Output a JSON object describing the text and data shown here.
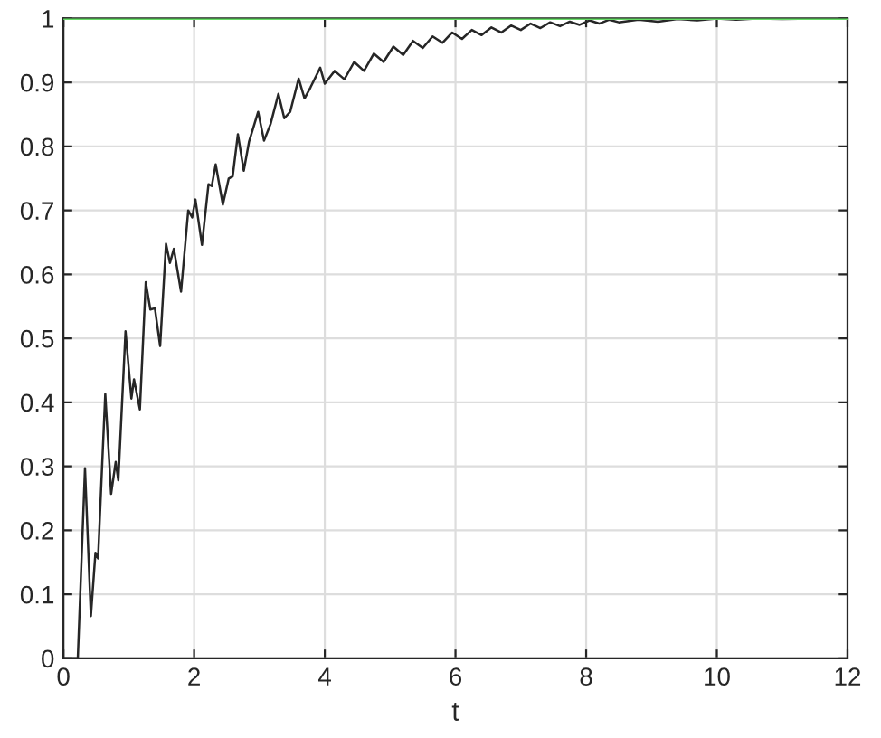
{
  "chart_data": {
    "type": "line",
    "xlabel": "t",
    "xlim": [
      0,
      12
    ],
    "ylim": [
      0,
      1
    ],
    "xticks": [
      0,
      2,
      4,
      6,
      8,
      10,
      12
    ],
    "yticks": [
      0,
      0.1,
      0.2,
      0.3,
      0.4,
      0.5,
      0.6,
      0.7,
      0.8,
      0.9,
      1
    ],
    "grid": true,
    "marker": "none",
    "line_style": "solid",
    "series": [
      {
        "color": "#262626",
        "x": [
          0,
          0.22,
          0.33,
          0.42,
          0.49,
          0.53,
          0.64,
          0.73,
          0.8,
          0.84,
          0.95,
          1.04,
          1.08,
          1.17,
          1.26,
          1.33,
          1.4,
          1.48,
          1.57,
          1.63,
          1.69,
          1.8,
          1.91,
          1.97,
          2.02,
          2.12,
          2.22,
          2.27,
          2.33,
          2.44,
          2.53,
          2.59,
          2.67,
          2.76,
          2.84,
          2.98,
          3.07,
          3.17,
          3.29,
          3.38,
          3.47,
          3.6,
          3.69,
          3.78,
          3.93,
          4.0,
          4.15,
          4.3,
          4.45,
          4.6,
          4.75,
          4.9,
          5.05,
          5.2,
          5.35,
          5.5,
          5.65,
          5.8,
          5.95,
          6.1,
          6.25,
          6.4,
          6.55,
          6.7,
          6.85,
          7.0,
          7.15,
          7.3,
          7.45,
          7.6,
          7.75,
          7.9,
          8.05,
          8.2,
          8.35,
          8.5,
          8.8,
          9.1,
          9.4,
          9.7,
          10.0,
          10.3,
          10.6,
          11.0,
          11.5,
          12
        ],
        "values": [
          0,
          0,
          0.297,
          0.066,
          0.165,
          0.156,
          0.413,
          0.257,
          0.307,
          0.278,
          0.511,
          0.406,
          0.436,
          0.389,
          0.588,
          0.545,
          0.547,
          0.488,
          0.648,
          0.618,
          0.64,
          0.573,
          0.7,
          0.689,
          0.717,
          0.646,
          0.741,
          0.738,
          0.772,
          0.709,
          0.75,
          0.753,
          0.819,
          0.762,
          0.807,
          0.854,
          0.809,
          0.835,
          0.882,
          0.844,
          0.854,
          0.906,
          0.875,
          0.892,
          0.923,
          0.898,
          0.918,
          0.905,
          0.932,
          0.918,
          0.945,
          0.932,
          0.956,
          0.943,
          0.965,
          0.954,
          0.972,
          0.962,
          0.978,
          0.968,
          0.982,
          0.974,
          0.986,
          0.978,
          0.989,
          0.982,
          0.992,
          0.985,
          0.994,
          0.988,
          0.995,
          0.99,
          0.997,
          0.992,
          0.998,
          0.994,
          0.998,
          0.995,
          0.999,
          0.997,
          1.0,
          0.998,
          1.0,
          0.999,
          1.0,
          1.0
        ]
      }
    ],
    "ref_lines": [
      {
        "axis": "y",
        "value": 1,
        "color": "#66dd66"
      }
    ]
  }
}
